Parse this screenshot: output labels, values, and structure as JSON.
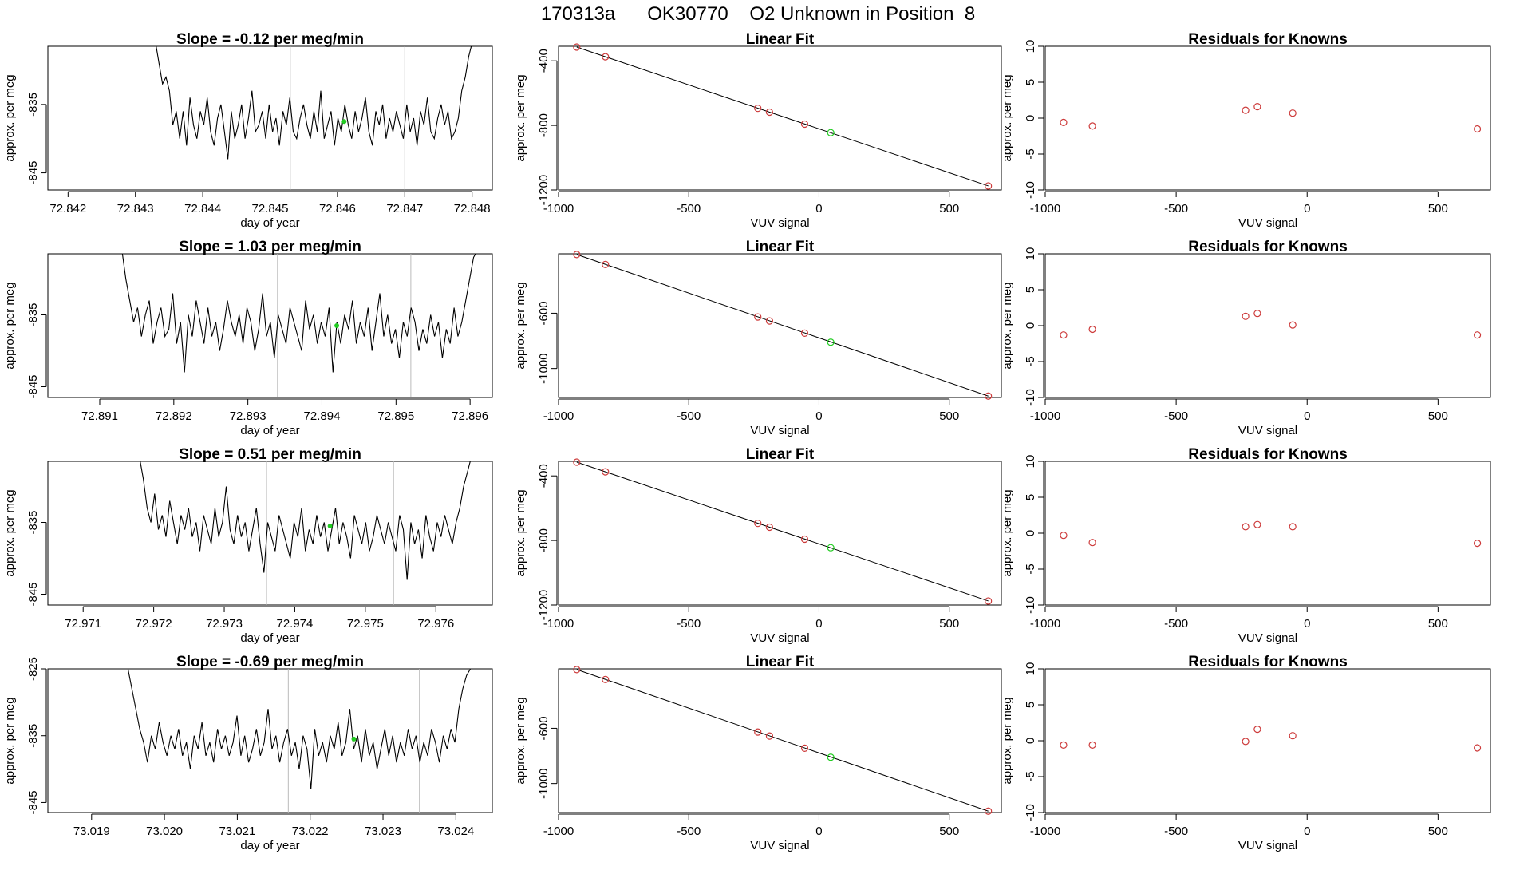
{
  "page_title": "170313a      OK30770    O2 Unknown in Position  8",
  "colors": {
    "trace": "#000000",
    "vline": "#bbbbbb",
    "known_point": "#cd3b3b",
    "unknown_point": "#22cc22",
    "axes": "#000000"
  },
  "labels": {
    "drift_ylabel": "approx. per meg",
    "drift_xlabel": "day of year",
    "fit_title": "Linear Fit",
    "fit_ylabel": "approx. per meg",
    "fit_xlabel": "VUV signal",
    "resid_title": "Residuals for Knowns",
    "resid_ylabel": "approx. per meg",
    "resid_xlabel": "VUV signal"
  },
  "chart_data": [
    {
      "type": "line",
      "panel": "drift",
      "row": 1,
      "title": "Slope =  -0.12  per meg/min",
      "xlabel": "day of year",
      "ylabel": "approx. per meg",
      "xlim": [
        72.8417,
        72.8483
      ],
      "ylim": [
        -847.5,
        -826.5
      ],
      "xticks": [
        "72.842",
        "72.843",
        "72.844",
        "72.845",
        "72.846",
        "72.847",
        "72.848"
      ],
      "yticks": [
        "-835",
        "-845"
      ],
      "x_start": 72.8433,
      "x_end": 72.848,
      "vlines": [
        72.8453,
        72.847
      ],
      "unknown_point": [
        72.8461,
        -837.5
      ],
      "series": [
        {
          "name": "trace",
          "values": [
            -826,
            -829,
            -832,
            -831,
            -833,
            -838,
            -836,
            -840,
            -836,
            -841,
            -834,
            -838,
            -840,
            -836,
            -838,
            -834,
            -839,
            -841,
            -837,
            -835,
            -839,
            -843,
            -836,
            -840,
            -838,
            -835,
            -840,
            -837,
            -833,
            -839,
            -838,
            -836,
            -840,
            -835,
            -839,
            -837,
            -841,
            -836,
            -838,
            -834,
            -839,
            -840,
            -837,
            -835,
            -838,
            -840,
            -836,
            -839,
            -833,
            -840,
            -838,
            -836,
            -841,
            -837,
            -839,
            -835,
            -838,
            -840,
            -836,
            -839,
            -837,
            -834,
            -839,
            -841,
            -836,
            -838,
            -835,
            -840,
            -837,
            -839,
            -836,
            -838,
            -840,
            -835,
            -839,
            -837,
            -841,
            -836,
            -838,
            -834,
            -839,
            -840,
            -837,
            -835,
            -838,
            -836,
            -840,
            -839,
            -837,
            -833,
            -831,
            -828,
            -826
          ]
        }
      ]
    },
    {
      "type": "scatter",
      "panel": "fit",
      "row": 1,
      "title": "Linear Fit",
      "xlabel": "VUV signal",
      "ylabel": "approx. per meg",
      "xlim": [
        -1000,
        700
      ],
      "ylim": [
        -1200,
        -310
      ],
      "xticks": [
        -1000,
        -500,
        0,
        500
      ],
      "yticks": [
        -400,
        -800,
        -1200
      ],
      "line": [
        [
          -930,
          -315
        ],
        [
          650,
          -1175
        ]
      ],
      "points": [
        [
          -930,
          -315
        ],
        [
          -820,
          -375
        ],
        [
          -235,
          -694
        ],
        [
          -190,
          -718
        ],
        [
          -55,
          -792
        ],
        [
          650,
          -1175
        ]
      ],
      "unknown": [
        [
          45,
          -845
        ]
      ]
    },
    {
      "type": "scatter",
      "panel": "residuals",
      "row": 1,
      "title": "Residuals for Knowns",
      "xlabel": "VUV signal",
      "ylabel": "approx. per meg",
      "xlim": [
        -1000,
        700
      ],
      "ylim": [
        -10,
        10
      ],
      "xticks": [
        -1000,
        -500,
        0,
        500
      ],
      "yticks": [
        10,
        5,
        0,
        -5,
        -10
      ],
      "points": [
        [
          -930,
          -0.6
        ],
        [
          -820,
          -1.1
        ],
        [
          -235,
          1.1
        ],
        [
          -190,
          1.6
        ],
        [
          -55,
          0.7
        ],
        [
          650,
          -1.5
        ]
      ]
    },
    {
      "type": "line",
      "panel": "drift",
      "row": 2,
      "title": "Slope =  1.03  per meg/min",
      "xlabel": "day of year",
      "ylabel": "approx. per meg",
      "xlim": [
        72.8903,
        72.8963
      ],
      "ylim": [
        -846.5,
        -826.5
      ],
      "xticks": [
        "72.891",
        "72.892",
        "72.893",
        "72.894",
        "72.895",
        "72.896"
      ],
      "yticks": [
        "-835",
        "-845"
      ],
      "x_start": 72.8913,
      "x_end": 72.8961,
      "vlines": [
        72.8934,
        72.8952
      ],
      "unknown_point": [
        72.8942,
        -836.5
      ],
      "series": [
        {
          "name": "trace",
          "values": [
            -826,
            -830,
            -833,
            -836,
            -834,
            -838,
            -835,
            -833,
            -839,
            -836,
            -834,
            -838,
            -837,
            -832,
            -839,
            -836,
            -843,
            -835,
            -838,
            -833,
            -836,
            -839,
            -834,
            -838,
            -836,
            -840,
            -837,
            -833,
            -836,
            -838,
            -835,
            -839,
            -834,
            -836,
            -840,
            -837,
            -832,
            -838,
            -836,
            -841,
            -835,
            -837,
            -839,
            -834,
            -836,
            -838,
            -840,
            -833,
            -837,
            -835,
            -839,
            -836,
            -838,
            -834,
            -843,
            -836,
            -839,
            -835,
            -837,
            -833,
            -839,
            -836,
            -838,
            -834,
            -840,
            -836,
            -832,
            -838,
            -835,
            -839,
            -837,
            -841,
            -836,
            -838,
            -834,
            -836,
            -840,
            -837,
            -839,
            -835,
            -838,
            -836,
            -841,
            -837,
            -839,
            -834,
            -838,
            -836,
            -833,
            -830,
            -827,
            -826
          ]
        }
      ]
    },
    {
      "type": "scatter",
      "panel": "fit",
      "row": 2,
      "title": "Linear Fit",
      "xlabel": "VUV signal",
      "ylabel": "approx. per meg",
      "xlim": [
        -1000,
        700
      ],
      "ylim": [
        -1210,
        -170
      ],
      "xticks": [
        -1000,
        -500,
        0,
        500
      ],
      "yticks": [
        -600,
        -1000
      ],
      "line": [
        [
          -930,
          -175
        ],
        [
          650,
          -1200
        ]
      ],
      "points": [
        [
          -930,
          -175
        ],
        [
          -820,
          -247
        ],
        [
          -235,
          -627
        ],
        [
          -190,
          -656
        ],
        [
          -55,
          -744
        ],
        [
          650,
          -1200
        ]
      ],
      "unknown": [
        [
          45,
          -810
        ]
      ]
    },
    {
      "type": "scatter",
      "panel": "residuals",
      "row": 2,
      "title": "Residuals for Knowns",
      "xlabel": "VUV signal",
      "ylabel": "approx. per meg",
      "xlim": [
        -1000,
        700
      ],
      "ylim": [
        -10,
        10
      ],
      "xticks": [
        -1000,
        -500,
        0,
        500
      ],
      "yticks": [
        10,
        5,
        0,
        -5,
        -10
      ],
      "points": [
        [
          -930,
          -1.3
        ],
        [
          -820,
          -0.5
        ],
        [
          -235,
          1.3
        ],
        [
          -190,
          1.7
        ],
        [
          -55,
          0.1
        ],
        [
          650,
          -1.3
        ]
      ]
    },
    {
      "type": "line",
      "panel": "drift",
      "row": 3,
      "title": "Slope =  0.51  per meg/min",
      "xlabel": "day of year",
      "ylabel": "approx. per meg",
      "xlim": [
        72.9705,
        72.9768
      ],
      "ylim": [
        -846.5,
        -826.5
      ],
      "xticks": [
        "72.971",
        "72.972",
        "72.973",
        "72.974",
        "72.975",
        "72.976"
      ],
      "yticks": [
        "-835",
        "-845"
      ],
      "x_start": 72.9718,
      "x_end": 72.9765,
      "vlines": [
        72.9736,
        72.9754
      ],
      "unknown_point": [
        72.9745,
        -835.5
      ],
      "series": [
        {
          "name": "trace",
          "values": [
            -826,
            -829,
            -833,
            -835,
            -831,
            -836,
            -834,
            -837,
            -832,
            -835,
            -838,
            -834,
            -836,
            -833,
            -837,
            -835,
            -839,
            -834,
            -836,
            -838,
            -833,
            -837,
            -835,
            -830,
            -836,
            -838,
            -834,
            -837,
            -835,
            -839,
            -836,
            -833,
            -838,
            -842,
            -835,
            -837,
            -839,
            -834,
            -836,
            -838,
            -840,
            -835,
            -837,
            -833,
            -839,
            -836,
            -838,
            -834,
            -837,
            -835,
            -839,
            -836,
            -833,
            -838,
            -835,
            -837,
            -840,
            -834,
            -836,
            -838,
            -835,
            -839,
            -837,
            -834,
            -836,
            -838,
            -835,
            -837,
            -839,
            -834,
            -836,
            -843,
            -835,
            -838,
            -836,
            -840,
            -834,
            -837,
            -839,
            -835,
            -837,
            -834,
            -836,
            -838,
            -835,
            -833,
            -830,
            -828,
            -826
          ]
        }
      ]
    },
    {
      "type": "scatter",
      "panel": "fit",
      "row": 3,
      "title": "Linear Fit",
      "xlabel": "VUV signal",
      "ylabel": "approx. per meg",
      "xlim": [
        -1000,
        700
      ],
      "ylim": [
        -1200,
        -310
      ],
      "xticks": [
        -1000,
        -500,
        0,
        500
      ],
      "yticks": [
        -400,
        -800,
        -1200
      ],
      "line": [
        [
          -930,
          -315
        ],
        [
          650,
          -1175
        ]
      ],
      "points": [
        [
          -930,
          -315
        ],
        [
          -820,
          -375
        ],
        [
          -235,
          -694
        ],
        [
          -190,
          -718
        ],
        [
          -55,
          -792
        ],
        [
          650,
          -1175
        ]
      ],
      "unknown": [
        [
          45,
          -845
        ]
      ]
    },
    {
      "type": "scatter",
      "panel": "residuals",
      "row": 3,
      "title": "Residuals for Knowns",
      "xlabel": "VUV signal",
      "ylabel": "approx. per meg",
      "xlim": [
        -1000,
        700
      ],
      "ylim": [
        -10,
        10
      ],
      "xticks": [
        -1000,
        -500,
        0,
        500
      ],
      "yticks": [
        10,
        5,
        0,
        -5,
        -10
      ],
      "points": [
        [
          -930,
          -0.3
        ],
        [
          -820,
          -1.3
        ],
        [
          -235,
          0.9
        ],
        [
          -190,
          1.2
        ],
        [
          -55,
          0.9
        ],
        [
          650,
          -1.4
        ]
      ]
    },
    {
      "type": "line",
      "panel": "drift",
      "row": 4,
      "title": "Slope =  -0.69  per meg/min",
      "xlabel": "day of year",
      "ylabel": "approx. per meg",
      "xlim": [
        73.0184,
        73.0245
      ],
      "ylim": [
        -846.5,
        -825
      ],
      "xticks": [
        "73.019",
        "73.020",
        "73.021",
        "73.022",
        "73.023",
        "73.024"
      ],
      "yticks": [
        "-825",
        "-835",
        "-845"
      ],
      "x_start": 73.0195,
      "x_end": 73.0242,
      "vlines": [
        73.0217,
        73.0235
      ],
      "unknown_point": [
        73.0226,
        -835.5
      ],
      "series": [
        {
          "name": "trace",
          "values": [
            -825,
            -828,
            -831,
            -834,
            -836,
            -839,
            -835,
            -837,
            -833,
            -836,
            -838,
            -835,
            -837,
            -834,
            -838,
            -836,
            -840,
            -835,
            -837,
            -833,
            -838,
            -836,
            -839,
            -834,
            -837,
            -835,
            -838,
            -836,
            -832,
            -838,
            -835,
            -839,
            -837,
            -834,
            -838,
            -836,
            -831,
            -837,
            -835,
            -839,
            -836,
            -834,
            -838,
            -836,
            -840,
            -835,
            -837,
            -843,
            -834,
            -838,
            -836,
            -839,
            -835,
            -837,
            -833,
            -838,
            -836,
            -831,
            -837,
            -835,
            -839,
            -834,
            -838,
            -836,
            -840,
            -837,
            -834,
            -838,
            -835,
            -839,
            -836,
            -838,
            -834,
            -837,
            -835,
            -839,
            -836,
            -838,
            -834,
            -836,
            -839,
            -835,
            -837,
            -834,
            -836,
            -831,
            -828,
            -826,
            -825
          ]
        }
      ]
    },
    {
      "type": "scatter",
      "panel": "fit",
      "row": 4,
      "title": "Linear Fit",
      "xlabel": "VUV signal",
      "ylabel": "approx. per meg",
      "xlim": [
        -1000,
        700
      ],
      "ylim": [
        -1210,
        -170
      ],
      "xticks": [
        -1000,
        -500,
        0,
        500
      ],
      "yticks": [
        -600,
        -1000
      ],
      "line": [
        [
          -930,
          -175
        ],
        [
          650,
          -1200
        ]
      ],
      "points": [
        [
          -930,
          -175
        ],
        [
          -820,
          -247
        ],
        [
          -235,
          -627
        ],
        [
          -190,
          -656
        ],
        [
          -55,
          -744
        ],
        [
          650,
          -1200
        ]
      ],
      "unknown": [
        [
          45,
          -810
        ]
      ]
    },
    {
      "type": "scatter",
      "panel": "residuals",
      "row": 4,
      "title": "Residuals for Knowns",
      "xlabel": "VUV signal",
      "ylabel": "approx. per meg",
      "xlim": [
        -1000,
        700
      ],
      "ylim": [
        -10,
        10
      ],
      "xticks": [
        -1000,
        -500,
        0,
        500
      ],
      "yticks": [
        10,
        5,
        0,
        -5,
        -10
      ],
      "points": [
        [
          -930,
          -0.6
        ],
        [
          -820,
          -0.6
        ],
        [
          -235,
          -0.1
        ],
        [
          -190,
          1.6
        ],
        [
          -55,
          0.7
        ],
        [
          650,
          -1.0
        ]
      ]
    }
  ]
}
